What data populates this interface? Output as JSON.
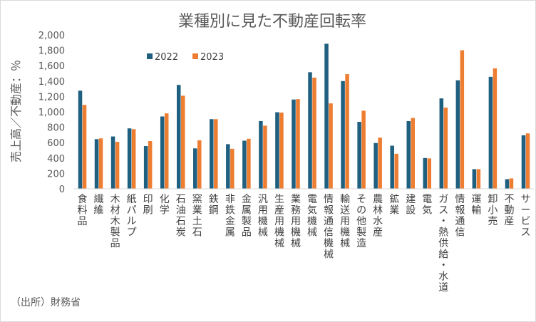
{
  "chart_data": {
    "type": "bar",
    "title": "業種別に見た不動産回転率",
    "ylabel": "売上高／不動産：％",
    "ylim": [
      0,
      2000
    ],
    "yticks": [
      "0",
      "200",
      "400",
      "600",
      "800",
      "1,000",
      "1,200",
      "1,400",
      "1,600",
      "1,800",
      "2,000"
    ],
    "grid": false,
    "legend_position": "top-left",
    "categories": [
      "食料品",
      "繊維",
      "木材木製品",
      "紙パルプ",
      "印刷",
      "化学",
      "石油石炭",
      "窯業土石",
      "鉄鋼",
      "非鉄金属",
      "金属製品",
      "汎用機械",
      "生産用機械",
      "業務用機械",
      "電気機械",
      "情報通信機械",
      "輸送用機械",
      "その他製造",
      "農林水産",
      "鉱業",
      "建設",
      "電気",
      "ガス・熱供給・水道",
      "情報通信",
      "運輸",
      "卸小売",
      "不動産",
      "サービス"
    ],
    "series": [
      {
        "name": "2022",
        "color": "#1f5f7f",
        "values": [
          1275,
          645,
          680,
          785,
          555,
          940,
          1350,
          525,
          905,
          580,
          625,
          880,
          995,
          1160,
          1515,
          1885,
          1400,
          870,
          595,
          560,
          880,
          400,
          1175,
          1410,
          255,
          1455,
          125,
          695
        ]
      },
      {
        "name": "2023",
        "color": "#ed7d31",
        "values": [
          1090,
          655,
          610,
          775,
          620,
          980,
          1210,
          630,
          905,
          520,
          650,
          820,
          990,
          1165,
          1445,
          1110,
          1490,
          1015,
          665,
          455,
          920,
          395,
          1055,
          1800,
          255,
          1565,
          135,
          720
        ]
      }
    ]
  },
  "source_note": "（出所）財務省"
}
